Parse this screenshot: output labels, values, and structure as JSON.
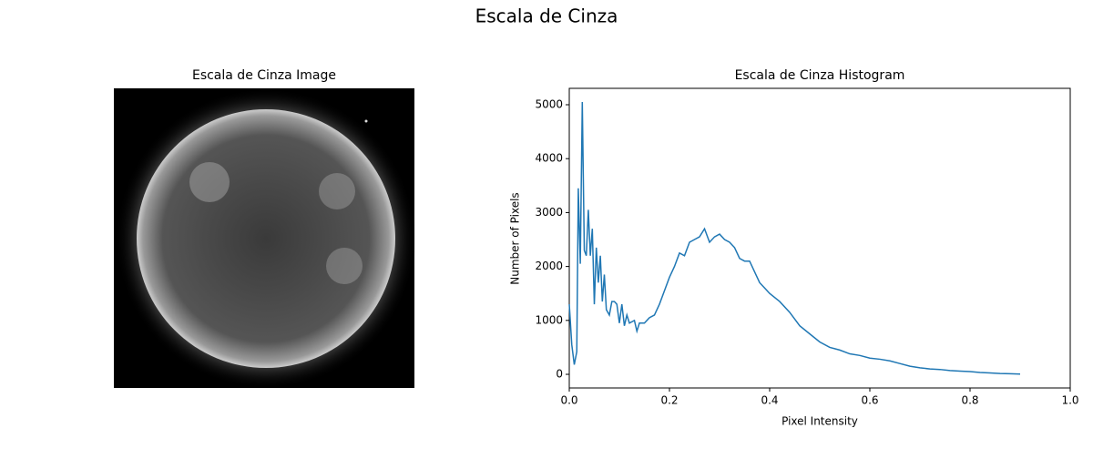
{
  "title": "Escala de Cinza",
  "chart_data": [
    {
      "type": "image",
      "title": "Escala de Cinza Image"
    },
    {
      "type": "line",
      "title": "Escala de Cinza Histogram",
      "xlabel": "Pixel Intensity",
      "ylabel": "Number of Pixels",
      "color": "#1f77b4",
      "x": [
        0,
        0.005,
        0.01,
        0.015,
        0.018,
        0.022,
        0.026,
        0.03,
        0.034,
        0.038,
        0.042,
        0.046,
        0.05,
        0.054,
        0.058,
        0.062,
        0.066,
        0.07,
        0.074,
        0.08,
        0.085,
        0.09,
        0.095,
        0.1,
        0.105,
        0.11,
        0.115,
        0.12,
        0.13,
        0.135,
        0.14,
        0.15,
        0.16,
        0.17,
        0.18,
        0.19,
        0.2,
        0.21,
        0.22,
        0.23,
        0.24,
        0.25,
        0.26,
        0.27,
        0.28,
        0.29,
        0.3,
        0.31,
        0.32,
        0.33,
        0.34,
        0.35,
        0.36,
        0.37,
        0.38,
        0.39,
        0.4,
        0.42,
        0.44,
        0.46,
        0.48,
        0.5,
        0.52,
        0.54,
        0.56,
        0.58,
        0.6,
        0.62,
        0.64,
        0.66,
        0.68,
        0.7,
        0.72,
        0.74,
        0.76,
        0.78,
        0.8,
        0.82,
        0.84,
        0.86,
        0.88,
        0.9
      ],
      "values": [
        1300,
        550,
        180,
        420,
        3450,
        2050,
        5050,
        2300,
        2200,
        3050,
        2200,
        2700,
        1300,
        2350,
        1700,
        2200,
        1350,
        1850,
        1200,
        1100,
        1350,
        1350,
        1300,
        950,
        1300,
        900,
        1100,
        950,
        1000,
        800,
        950,
        950,
        1050,
        1100,
        1300,
        1550,
        1800,
        2000,
        2250,
        2200,
        2450,
        2500,
        2550,
        2700,
        2450,
        2550,
        2600,
        2500,
        2450,
        2350,
        2150,
        2100,
        2100,
        1900,
        1700,
        1600,
        1500,
        1350,
        1150,
        900,
        750,
        600,
        500,
        450,
        380,
        350,
        300,
        280,
        250,
        200,
        150,
        120,
        100,
        90,
        70,
        60,
        50,
        35,
        25,
        15,
        10,
        5
      ],
      "xlim": [
        0,
        1
      ],
      "ylim": [
        -253,
        5304
      ],
      "xticks": [
        {
          "value": 0,
          "label": "0.0"
        },
        0.2,
        0.4,
        0.6,
        0.8,
        {
          "value": 1,
          "label": "1.0"
        }
      ],
      "yticks": [
        0,
        1000,
        2000,
        3000,
        4000,
        5000
      ]
    }
  ]
}
